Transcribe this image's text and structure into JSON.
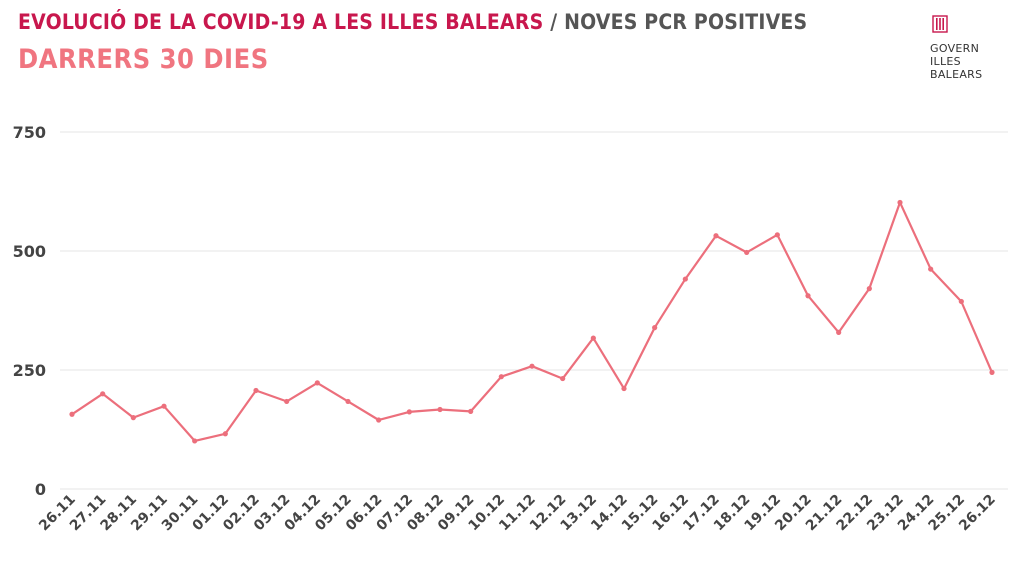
{
  "header": {
    "title_main": "EVOLUCIÓ DE LA COVID-19 A LES ILLES BALEARS",
    "title_sep": " / ",
    "title_metric": "NOVES PCR POSITIVES",
    "subtitle": "DARRERS 30 DIES"
  },
  "logo": {
    "lines": [
      "GOVERN",
      "ILLES",
      "BALEARS"
    ],
    "icon": "govern-illes-balears-logo-icon"
  },
  "colors": {
    "title": "#c8174d",
    "title_secondary": "#555555",
    "subtitle": "#f07580",
    "line": "#ec6f7c",
    "grid": "#e6e6e6"
  },
  "chart_data": {
    "type": "line",
    "categories": [
      "26.11",
      "27.11",
      "28.11",
      "29.11",
      "30.11",
      "01.12",
      "02.12",
      "03.12",
      "04.12",
      "05.12",
      "06.12",
      "07.12",
      "08.12",
      "09.12",
      "10.12",
      "11.12",
      "12.12",
      "13.12",
      "14.12",
      "15.12",
      "16.12",
      "17.12",
      "18.12",
      "19.12",
      "20.12",
      "21.12",
      "22.12",
      "23.12",
      "24.12",
      "25.12",
      "26.12"
    ],
    "values": [
      157,
      200,
      150,
      174,
      101,
      116,
      207,
      184,
      223,
      184,
      145,
      162,
      167,
      163,
      236,
      258,
      232,
      317,
      211,
      339,
      441,
      532,
      497,
      534,
      406,
      329,
      421,
      602,
      462,
      394,
      245
    ],
    "ylim": [
      0,
      750
    ],
    "yticks": [
      0,
      250,
      500,
      750
    ],
    "grid": true,
    "legend": "none"
  }
}
